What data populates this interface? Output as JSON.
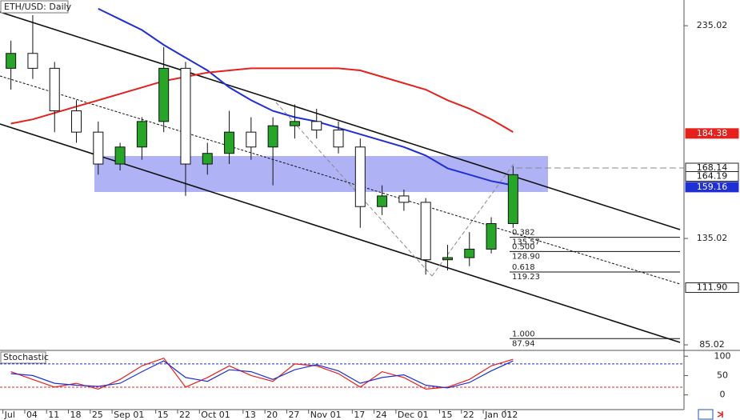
{
  "chart_data": {
    "type": "candlestick",
    "title": "ETH/USD: Daily",
    "categories": [
      "Jul",
      "04",
      "11",
      "18",
      "25",
      "Sep 01",
      null,
      "15",
      "22",
      "Oct 01",
      null,
      "13",
      "20",
      "27",
      "Nov 01",
      null,
      "17",
      "24",
      "Dec 01",
      null,
      "15",
      "22",
      "Jan 01",
      "12"
    ],
    "open": [
      215,
      222,
      215,
      195,
      185,
      170,
      178,
      190,
      215,
      170,
      175,
      185,
      178,
      188,
      190,
      186,
      178,
      150,
      155,
      152,
      125,
      126,
      130,
      142
    ],
    "high": [
      228,
      240,
      218,
      200,
      190,
      180,
      192,
      225,
      218,
      180,
      195,
      192,
      192,
      198,
      196,
      190,
      182,
      160,
      158,
      154,
      132,
      138,
      145,
      169
    ],
    "low": [
      205,
      210,
      185,
      180,
      165,
      167,
      172,
      185,
      155,
      165,
      170,
      172,
      160,
      182,
      182,
      175,
      140,
      146,
      148,
      118,
      120,
      122,
      128,
      140
    ],
    "close": [
      222,
      215,
      195,
      185,
      170,
      178,
      190,
      215,
      170,
      175,
      185,
      178,
      188,
      190,
      186,
      178,
      150,
      155,
      152,
      125,
      126,
      130,
      142,
      165
    ],
    "up_color": "#26a626",
    "down_color": "#ffffff",
    "ylim": [
      82.4,
      247.1
    ],
    "yticks": [
      85.02,
      135.02,
      235.02
    ],
    "overlays": [
      {
        "color": "#1f2fd6",
        "values": [
          null,
          null,
          null,
          null,
          243,
          238,
          233,
          226,
          220,
          214,
          206,
          200,
          195,
          192,
          190,
          187,
          184,
          181,
          178,
          174,
          168,
          165,
          162,
          160
        ]
      },
      {
        "color": "#e8201c",
        "values": [
          189,
          191,
          194,
          197,
          200,
          203,
          206,
          209,
          211,
          213,
          214,
          215,
          215,
          215,
          215,
          215,
          214,
          211,
          208,
          205,
          200,
          196,
          191,
          185
        ]
      }
    ],
    "price_labels": [
      184.38,
      168.14,
      164.19,
      159.16,
      {
        "value": 111.9,
        "label": "111.90"
      }
    ],
    "price_label_colors": [
      "#e8201c",
      "#ffffff",
      "#ffffff",
      "#1f2fd6",
      "#ffffff"
    ],
    "fib_levels": [
      {
        "ratio": "0.382",
        "price": {
          "value": 135.57,
          "label": "135.57"
        }
      },
      {
        "ratio": "0.500",
        "price": {
          "value": 128.9,
          "label": "128.90"
        }
      },
      {
        "ratio": "0.618",
        "price": {
          "value": 119.23,
          "label": "119.23"
        }
      },
      {
        "ratio": "1.000",
        "price": {
          "value": 87.94,
          "label": "87.94"
        }
      }
    ],
    "stochastic": {
      "title": "Stochastic",
      "ylim": [
        -38,
        115
      ],
      "yticks": [
        0,
        50,
        100
      ],
      "levels": [
        20,
        80
      ],
      "level_colors": [
        "#e8201c",
        "#1f2fd6"
      ],
      "series": [
        {
          "color": "#e8201c",
          "values": [
            60,
            40,
            20,
            30,
            15,
            40,
            75,
            95,
            20,
            45,
            75,
            50,
            35,
            80,
            75,
            55,
            20,
            60,
            45,
            15,
            20,
            40,
            75,
            92
          ]
        },
        {
          "color": "#1f2fd6",
          "values": [
            55,
            50,
            30,
            25,
            22,
            30,
            60,
            88,
            45,
            35,
            65,
            60,
            40,
            65,
            78,
            62,
            30,
            45,
            52,
            25,
            18,
            32,
            62,
            88
          ]
        }
      ]
    }
  }
}
